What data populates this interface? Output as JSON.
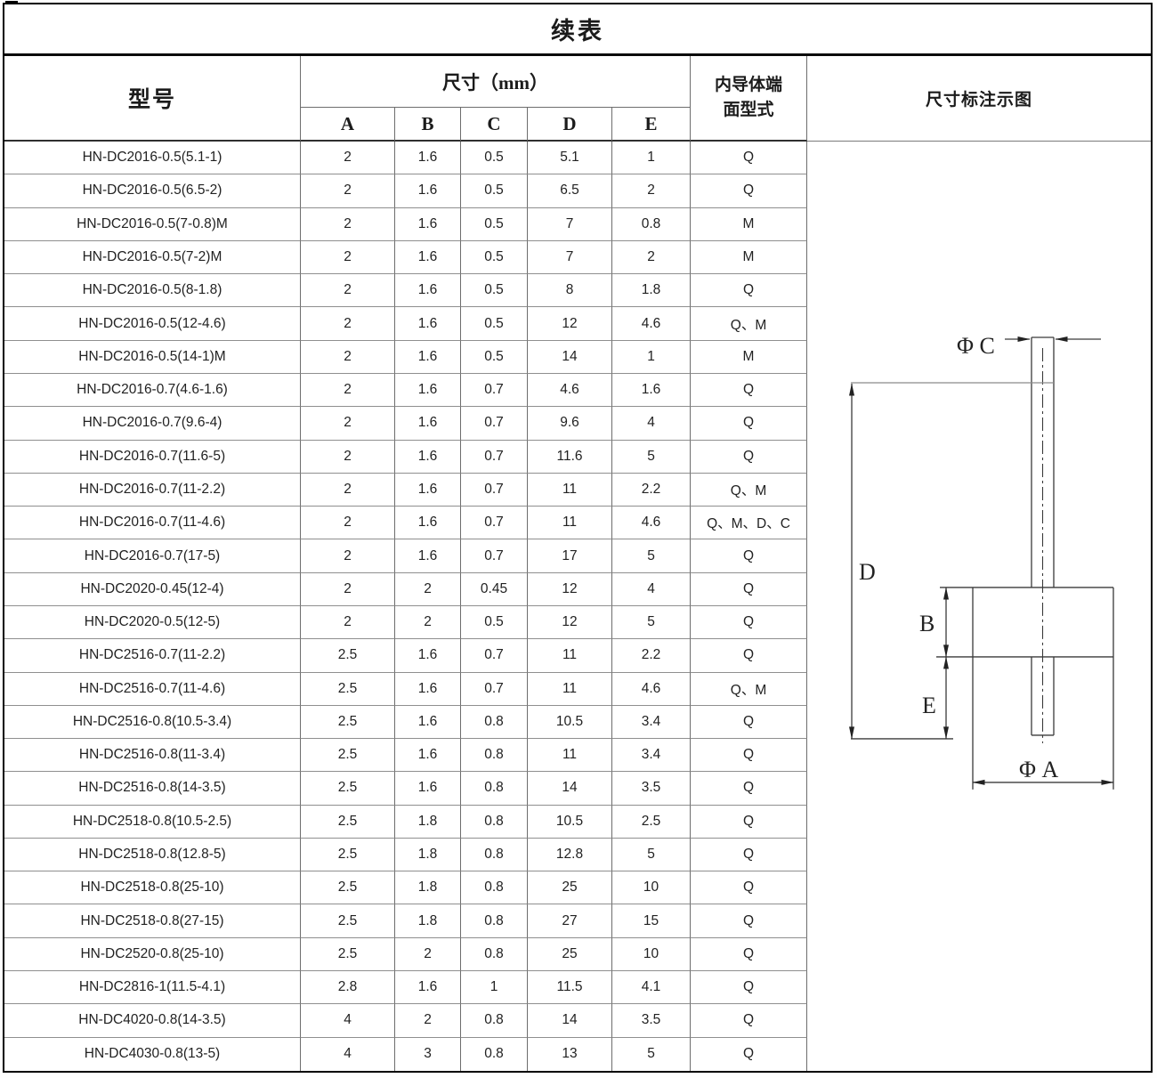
{
  "title": "续表",
  "header": {
    "model": "型号",
    "dims_group": "尺寸（mm）",
    "dim_cols": [
      "A",
      "B",
      "C",
      "D",
      "E"
    ],
    "conductor_type": "内导体端面型式",
    "diagram": "尺寸标注示图"
  },
  "rows": [
    {
      "model": "HN-DC2016-0.5(5.1-1)",
      "a": "2",
      "b": "1.6",
      "c": "0.5",
      "d": "5.1",
      "e": "1",
      "type": "Q"
    },
    {
      "model": "HN-DC2016-0.5(6.5-2)",
      "a": "2",
      "b": "1.6",
      "c": "0.5",
      "d": "6.5",
      "e": "2",
      "type": "Q"
    },
    {
      "model": "HN-DC2016-0.5(7-0.8)M",
      "a": "2",
      "b": "1.6",
      "c": "0.5",
      "d": "7",
      "e": "0.8",
      "type": "M"
    },
    {
      "model": "HN-DC2016-0.5(7-2)M",
      "a": "2",
      "b": "1.6",
      "c": "0.5",
      "d": "7",
      "e": "2",
      "type": "M"
    },
    {
      "model": "HN-DC2016-0.5(8-1.8)",
      "a": "2",
      "b": "1.6",
      "c": "0.5",
      "d": "8",
      "e": "1.8",
      "type": "Q"
    },
    {
      "model": "HN-DC2016-0.5(12-4.6)",
      "a": "2",
      "b": "1.6",
      "c": "0.5",
      "d": "12",
      "e": "4.6",
      "type": "Q、M"
    },
    {
      "model": "HN-DC2016-0.5(14-1)M",
      "a": "2",
      "b": "1.6",
      "c": "0.5",
      "d": "14",
      "e": "1",
      "type": "M"
    },
    {
      "model": "HN-DC2016-0.7(4.6-1.6)",
      "a": "2",
      "b": "1.6",
      "c": "0.7",
      "d": "4.6",
      "e": "1.6",
      "type": "Q"
    },
    {
      "model": "HN-DC2016-0.7(9.6-4)",
      "a": "2",
      "b": "1.6",
      "c": "0.7",
      "d": "9.6",
      "e": "4",
      "type": "Q"
    },
    {
      "model": "HN-DC2016-0.7(11.6-5)",
      "a": "2",
      "b": "1.6",
      "c": "0.7",
      "d": "11.6",
      "e": "5",
      "type": "Q"
    },
    {
      "model": "HN-DC2016-0.7(11-2.2)",
      "a": "2",
      "b": "1.6",
      "c": "0.7",
      "d": "11",
      "e": "2.2",
      "type": "Q、M"
    },
    {
      "model": "HN-DC2016-0.7(11-4.6)",
      "a": "2",
      "b": "1.6",
      "c": "0.7",
      "d": "11",
      "e": "4.6",
      "type": "Q、M、D、C"
    },
    {
      "model": "HN-DC2016-0.7(17-5)",
      "a": "2",
      "b": "1.6",
      "c": "0.7",
      "d": "17",
      "e": "5",
      "type": "Q"
    },
    {
      "model": "HN-DC2020-0.45(12-4)",
      "a": "2",
      "b": "2",
      "c": "0.45",
      "d": "12",
      "e": "4",
      "type": "Q"
    },
    {
      "model": "HN-DC2020-0.5(12-5)",
      "a": "2",
      "b": "2",
      "c": "0.5",
      "d": "12",
      "e": "5",
      "type": "Q"
    },
    {
      "model": "HN-DC2516-0.7(11-2.2)",
      "a": "2.5",
      "b": "1.6",
      "c": "0.7",
      "d": "11",
      "e": "2.2",
      "type": "Q"
    },
    {
      "model": "HN-DC2516-0.7(11-4.6)",
      "a": "2.5",
      "b": "1.6",
      "c": "0.7",
      "d": "11",
      "e": "4.6",
      "type": "Q、M"
    },
    {
      "model": "HN-DC2516-0.8(10.5-3.4)",
      "a": "2.5",
      "b": "1.6",
      "c": "0.8",
      "d": "10.5",
      "e": "3.4",
      "type": "Q"
    },
    {
      "model": "HN-DC2516-0.8(11-3.4)",
      "a": "2.5",
      "b": "1.6",
      "c": "0.8",
      "d": "11",
      "e": "3.4",
      "type": "Q"
    },
    {
      "model": "HN-DC2516-0.8(14-3.5)",
      "a": "2.5",
      "b": "1.6",
      "c": "0.8",
      "d": "14",
      "e": "3.5",
      "type": "Q"
    },
    {
      "model": "HN-DC2518-0.8(10.5-2.5)",
      "a": "2.5",
      "b": "1.8",
      "c": "0.8",
      "d": "10.5",
      "e": "2.5",
      "type": "Q"
    },
    {
      "model": "HN-DC2518-0.8(12.8-5)",
      "a": "2.5",
      "b": "1.8",
      "c": "0.8",
      "d": "12.8",
      "e": "5",
      "type": "Q"
    },
    {
      "model": "HN-DC2518-0.8(25-10)",
      "a": "2.5",
      "b": "1.8",
      "c": "0.8",
      "d": "25",
      "e": "10",
      "type": "Q"
    },
    {
      "model": "HN-DC2518-0.8(27-15)",
      "a": "2.5",
      "b": "1.8",
      "c": "0.8",
      "d": "27",
      "e": "15",
      "type": "Q"
    },
    {
      "model": "HN-DC2520-0.8(25-10)",
      "a": "2.5",
      "b": "2",
      "c": "0.8",
      "d": "25",
      "e": "10",
      "type": "Q"
    },
    {
      "model": "HN-DC2816-1(11.5-4.1)",
      "a": "2.8",
      "b": "1.6",
      "c": "1",
      "d": "11.5",
      "e": "4.1",
      "type": "Q"
    },
    {
      "model": "HN-DC4020-0.8(14-3.5)",
      "a": "4",
      "b": "2",
      "c": "0.8",
      "d": "14",
      "e": "3.5",
      "type": "Q"
    },
    {
      "model": "HN-DC4030-0.8(13-5)",
      "a": "4",
      "b": "3",
      "c": "0.8",
      "d": "13",
      "e": "5",
      "type": "Q"
    }
  ],
  "diagram": {
    "labels": {
      "phi_c": "Φ C",
      "d": "D",
      "b": "B",
      "e": "E",
      "phi_a": "Φ A"
    }
  },
  "colors": {
    "line": "#3a3a3a",
    "border_dark": "#000000",
    "border_gray": "#6d6d6d",
    "text": "#1b1b1b"
  }
}
